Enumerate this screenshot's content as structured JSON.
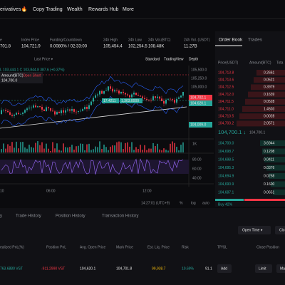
{
  "nav": {
    "items": [
      "erivatives🔥",
      "Copy Trading",
      "Wealth",
      "Rewards Hub",
      "More"
    ]
  },
  "stats": [
    {
      "label": "e",
      "value": "701.8"
    },
    {
      "label": "Index Price",
      "value": "104,721.9"
    },
    {
      "label": "Funding/Countdown",
      "value": "0.0080% / 02:33:00"
    },
    {
      "label": "24h High",
      "value": "105,454.4"
    },
    {
      "label": "24h Low",
      "value": "102,254.5"
    },
    {
      "label": "24h Vol.(BTC)",
      "value": "108.48K"
    },
    {
      "label": "24h Vol. (USDT)",
      "value": "11.27B"
    }
  ],
  "chart": {
    "price_selector": "Last Price ▾",
    "views": [
      "Standard",
      "TradingView",
      "Depth"
    ],
    "legend": "L 103,444.1 C 103,844.8 387.6 (+0.37%)",
    "order_tag": {
      "label": "Amount(BTC)",
      "side": "Open Short",
      "price": "104,700.0"
    },
    "price_axis": [
      "105,500.0",
      "105,250.0",
      "105,000.0"
    ],
    "tags": [
      "17.4211",
      "1,303.0000",
      "104,702.1",
      "104,620.1",
      "104,009.0"
    ],
    "volume_axis": "1K",
    "indicator_axis": [
      "80.00",
      "60.00",
      "40.00"
    ],
    "time_axis": [
      "10",
      "06:00",
      "12:00"
    ],
    "clock": "14:27:01 (UTC+9)",
    "scale_options": [
      "%",
      "log",
      "auto"
    ]
  },
  "order_book": {
    "tabs": [
      "Order Book",
      "Trades"
    ],
    "headers": [
      "Price(USDT)",
      "Amount(BTC)",
      "Tota"
    ],
    "asks": [
      [
        "104,713.8",
        "0.2661"
      ],
      [
        "104,713.6",
        "0.0521"
      ],
      [
        "104,712.5",
        "0.3979"
      ],
      [
        "104,712.0",
        "0.1639"
      ],
      [
        "104,711.5",
        "0.0528"
      ],
      [
        "104,711.0",
        "1.4503"
      ],
      [
        "104,710.5",
        "0.0028"
      ],
      [
        "104,700.2",
        "2.0571"
      ]
    ],
    "last_price": "104,700.1 ↓",
    "mark_price": "104,700.1",
    "bids": [
      [
        "104,700.0",
        "3.6944"
      ],
      [
        "104,698.7",
        "0.1208"
      ],
      [
        "104,698.5",
        "0.0411"
      ],
      [
        "104,695.3",
        "0.0376"
      ],
      [
        "104,694.9",
        "0.0258"
      ],
      [
        "104,690.9",
        "0.1600"
      ],
      [
        "104,687.1",
        "0.0651"
      ]
    ],
    "ratio": "Buy 42%"
  },
  "positions": {
    "tabs": [
      "y",
      "Trade History",
      "Position History",
      "Transaction History"
    ],
    "sort": "Open Time ▾",
    "close_button": "Clo",
    "headers": [
      "ealized PnL(%)",
      "Position PnL",
      "Avg. Open Price",
      "Mark Price",
      "Est. Liq. Price",
      "Risk",
      "TP/SL",
      "Close Position"
    ],
    "row": [
      "763.6880 VST",
      "-911.2990 VST",
      "104,620.1",
      "104,701.8",
      "99,938.7",
      "10.69%",
      "91.1"
    ],
    "actions": [
      "Add",
      "Limit",
      "Mark"
    ]
  }
}
